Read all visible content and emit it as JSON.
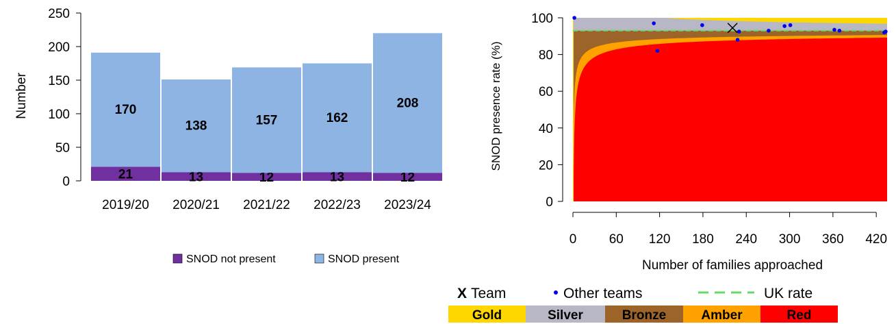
{
  "chart_data": [
    {
      "type": "bar",
      "stacked": true,
      "categories": [
        "2019/20",
        "2020/21",
        "2021/22",
        "2022/23",
        "2023/24"
      ],
      "series": [
        {
          "name": "SNOD not present",
          "values": [
            21,
            13,
            12,
            13,
            12
          ],
          "color": "#7030a0"
        },
        {
          "name": "SNOD present",
          "values": [
            170,
            138,
            157,
            162,
            208
          ],
          "color": "#8eb4e3"
        }
      ],
      "ylabel": "Number",
      "ylim": [
        0,
        250
      ],
      "yticks": [
        0,
        50,
        100,
        150,
        200,
        250
      ],
      "legend_position": "bottom"
    },
    {
      "type": "scatter",
      "ylabel": "SNOD presence rate (%)",
      "xlabel": "Number of families approached",
      "xlim": [
        0,
        435
      ],
      "ylim": [
        0,
        100
      ],
      "xticks": [
        0,
        60,
        120,
        180,
        240,
        300,
        360,
        420
      ],
      "yticks": [
        0,
        20,
        40,
        60,
        80,
        100
      ],
      "uk_rate": 93,
      "team_point": {
        "x": 221,
        "y": 94.5
      },
      "other_teams": [
        {
          "x": 2,
          "y": 100
        },
        {
          "x": 112,
          "y": 97
        },
        {
          "x": 117,
          "y": 82
        },
        {
          "x": 179,
          "y": 96
        },
        {
          "x": 228,
          "y": 88
        },
        {
          "x": 230,
          "y": 92.5
        },
        {
          "x": 271,
          "y": 93
        },
        {
          "x": 293,
          "y": 95.5
        },
        {
          "x": 301,
          "y": 96
        },
        {
          "x": 362,
          "y": 93.5
        },
        {
          "x": 369,
          "y": 93
        },
        {
          "x": 431,
          "y": 92
        },
        {
          "x": 433,
          "y": 92.5
        }
      ],
      "funnel_colors": {
        "gold": "#ffd700",
        "silver": "#b7b7c5",
        "bronze": "#9c6428",
        "amber": "#ffa200",
        "red": "#ff0000"
      },
      "legend": {
        "team": "Team",
        "team_marker": "X",
        "other": "Other teams",
        "uk": "UK rate",
        "bands": [
          "Gold",
          "Silver",
          "Bronze",
          "Amber",
          "Red"
        ]
      }
    }
  ]
}
